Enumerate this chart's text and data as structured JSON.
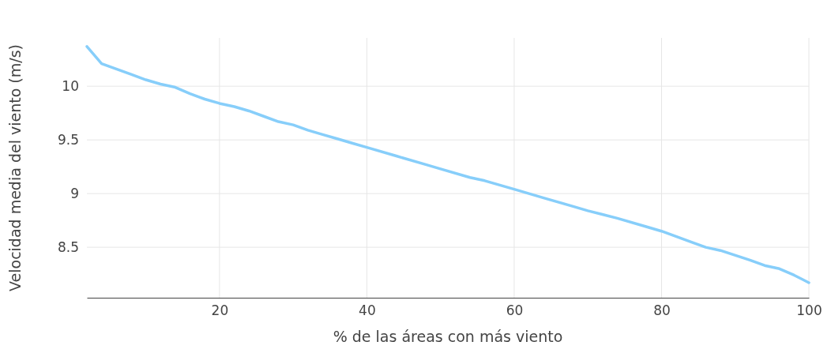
{
  "chart_data": {
    "type": "line",
    "xlabel": "% de las áreas con más viento",
    "ylabel": "Velocidad media del viento (m/s)",
    "x": [
      2,
      4,
      6,
      8,
      10,
      12,
      14,
      16,
      18,
      20,
      22,
      24,
      26,
      28,
      30,
      32,
      34,
      36,
      38,
      40,
      44,
      48,
      50,
      54,
      56,
      60,
      64,
      68,
      70,
      74,
      78,
      80,
      84,
      86,
      88,
      92,
      94,
      96,
      98,
      100
    ],
    "series": [
      {
        "color": "#87cefa",
        "values": [
          10.37,
          10.21,
          10.16,
          10.11,
          10.06,
          10.02,
          9.99,
          9.93,
          9.88,
          9.84,
          9.81,
          9.77,
          9.72,
          9.67,
          9.64,
          9.59,
          9.55,
          9.51,
          9.47,
          9.43,
          9.35,
          9.27,
          9.23,
          9.15,
          9.12,
          9.04,
          8.96,
          8.88,
          8.84,
          8.77,
          8.69,
          8.65,
          8.55,
          8.5,
          8.47,
          8.38,
          8.33,
          8.3,
          8.24,
          8.17
        ]
      }
    ],
    "xlim": [
      2,
      100
    ],
    "xticks": [
      20,
      40,
      60,
      80,
      100
    ],
    "ylim": [
      8.03,
      10.45
    ],
    "yticks": [
      8.5,
      9,
      9.5,
      10
    ],
    "grid": true,
    "marker": "none",
    "line_style": "solid"
  }
}
